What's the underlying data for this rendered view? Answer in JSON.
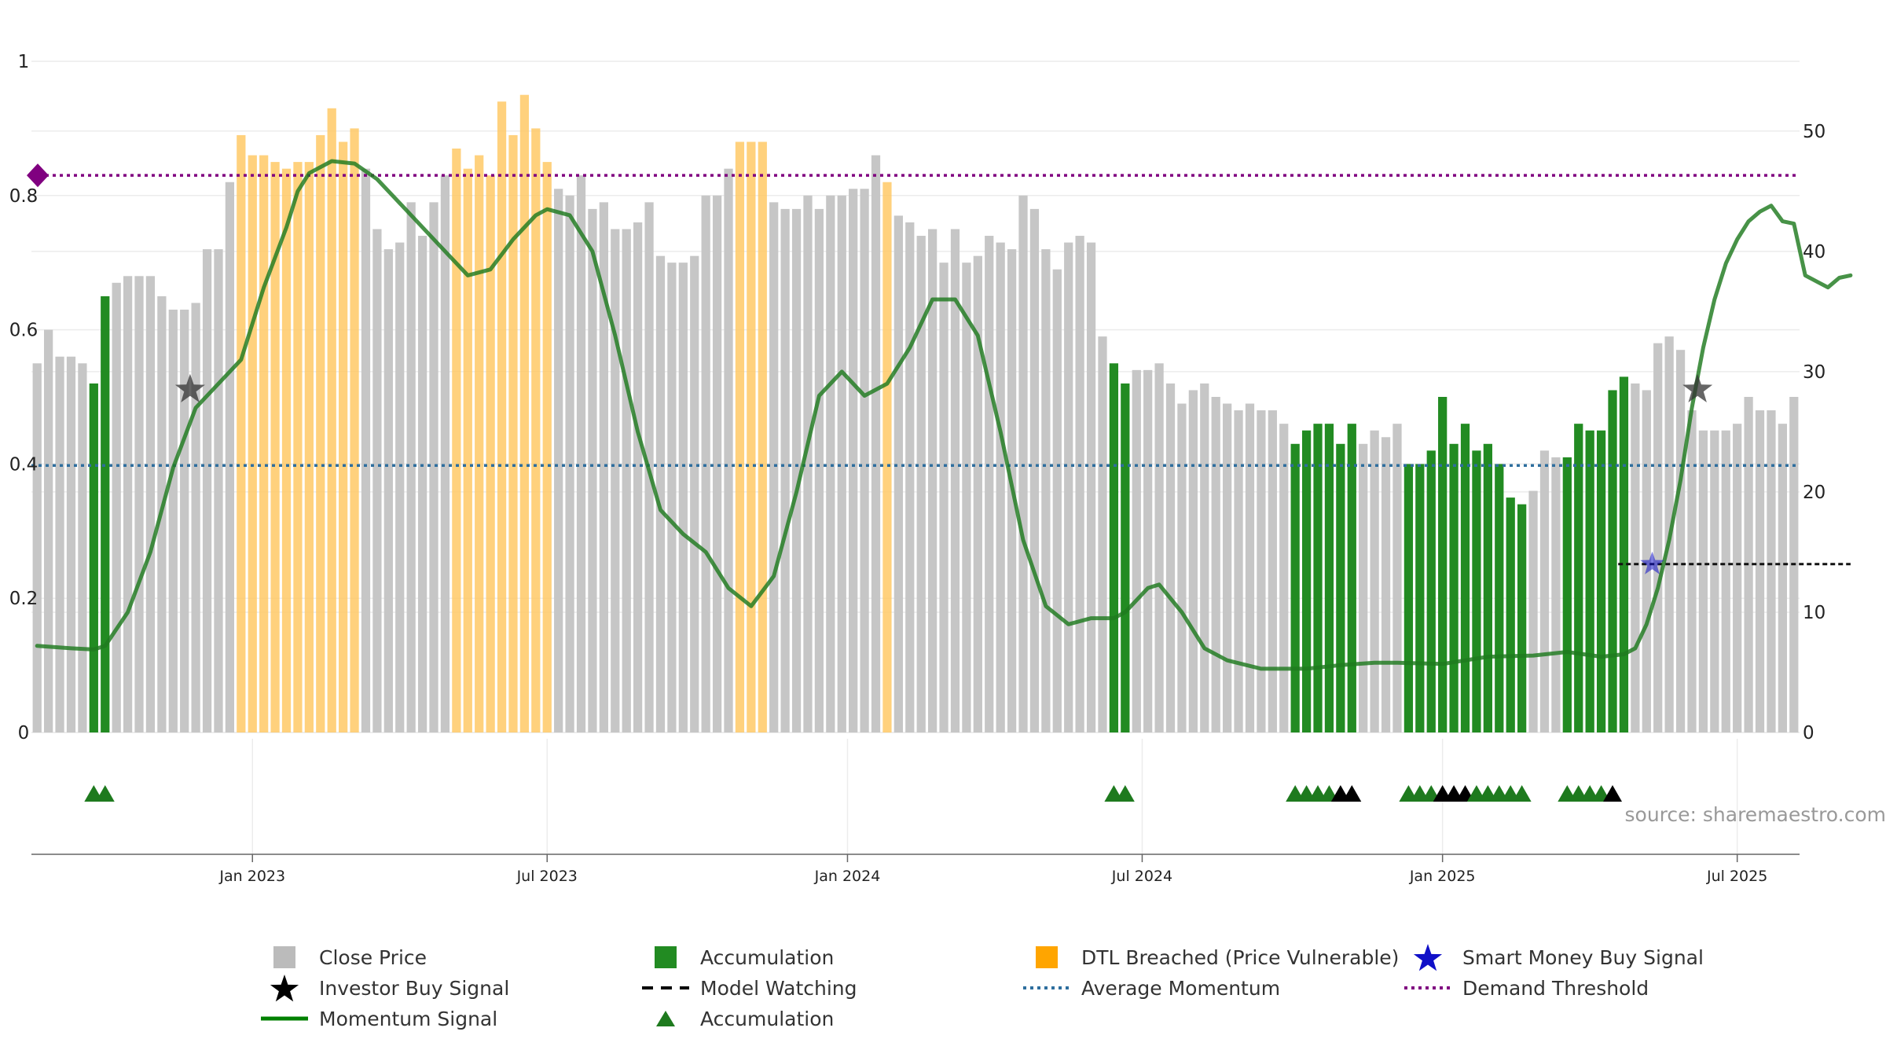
{
  "chart_data": {
    "type": "bar",
    "title": "",
    "source_text": "source: sharemaestro.com",
    "left_axis": {
      "ticks": [
        "0",
        "0.2",
        "0.4",
        "0.6",
        "0.8",
        "1"
      ],
      "values": [
        0,
        0.2,
        0.4,
        0.6,
        0.8,
        1
      ],
      "ylim": [
        0,
        1
      ]
    },
    "right_axis": {
      "ticks": [
        "0",
        "10",
        "20",
        "30",
        "40",
        "50"
      ],
      "values": [
        0,
        10,
        20,
        30,
        40,
        50
      ],
      "ylim": [
        0,
        55.8
      ]
    },
    "x_ticks": [
      {
        "label": "Jan 2023",
        "week": 19
      },
      {
        "label": "Jul 2023",
        "week": 45
      },
      {
        "label": "Jan 2024",
        "week": 71.5
      },
      {
        "label": "Jul 2024",
        "week": 97.5
      },
      {
        "label": "Jan 2025",
        "week": 124
      },
      {
        "label": "Jul 2025",
        "week": 150
      }
    ],
    "series": [
      {
        "name": "Close Price",
        "color": "#c6c6c6",
        "values": [
          0.55,
          0.6,
          0.56,
          0.56,
          0.55,
          0.52,
          0.65,
          0.67,
          0.68,
          0.68,
          0.68,
          0.65,
          0.63,
          0.63,
          0.64,
          0.72,
          0.72,
          0.82,
          0.89,
          0.86,
          0.86,
          0.85,
          0.84,
          0.85,
          0.85,
          0.89,
          0.93,
          0.88,
          0.9,
          0.84,
          0.75,
          0.72,
          0.73,
          0.79,
          0.74,
          0.79,
          0.83,
          0.87,
          0.84,
          0.86,
          0.83,
          0.94,
          0.89,
          0.95,
          0.9,
          0.85,
          0.81,
          0.8,
          0.83,
          0.78,
          0.79,
          0.75,
          0.75,
          0.76,
          0.79,
          0.71,
          0.7,
          0.7,
          0.71,
          0.8,
          0.8,
          0.84,
          0.88,
          0.88,
          0.88,
          0.79,
          0.78,
          0.78,
          0.8,
          0.78,
          0.8,
          0.8,
          0.81,
          0.81,
          0.86,
          0.82,
          0.77,
          0.76,
          0.74,
          0.75,
          0.7,
          0.75,
          0.7,
          0.71,
          0.74,
          0.73,
          0.72,
          0.8,
          0.78,
          0.72,
          0.69,
          0.73,
          0.74,
          0.73,
          0.59,
          0.55,
          0.52,
          0.54,
          0.54,
          0.55,
          0.52,
          0.49,
          0.51,
          0.52,
          0.5,
          0.49,
          0.48,
          0.49,
          0.48,
          0.48,
          0.46,
          0.43,
          0.45,
          0.46,
          0.46,
          0.43,
          0.46,
          0.43,
          0.45,
          0.44,
          0.46,
          0.4,
          0.4,
          0.42,
          0.5,
          0.43,
          0.46,
          0.42,
          0.43,
          0.4,
          0.35,
          0.34,
          0.36,
          0.42,
          0.41,
          0.41,
          0.46,
          0.45,
          0.45,
          0.51,
          0.53,
          0.52,
          0.51,
          0.58,
          0.59,
          0.57,
          0.48,
          0.45,
          0.45,
          0.45,
          0.46,
          0.5,
          0.48,
          0.48,
          0.46,
          0.5
        ]
      },
      {
        "name": "Accumulation",
        "color": "#228b22",
        "weeks": [
          5,
          6,
          95,
          96,
          111,
          112,
          113,
          114,
          115,
          116,
          121,
          122,
          123,
          124,
          125,
          126,
          127,
          128,
          129,
          130,
          131,
          135,
          136,
          137,
          138,
          139,
          140
        ]
      },
      {
        "name": "DTL Breached (Price Vulnerable)",
        "color": "#ffc966",
        "weeks": [
          18,
          19,
          20,
          21,
          22,
          23,
          24,
          25,
          26,
          27,
          28,
          37,
          38,
          39,
          40,
          41,
          42,
          43,
          44,
          45,
          62,
          63,
          64,
          75
        ]
      },
      {
        "name": "Momentum Signal",
        "color": "#1e7a1e",
        "points": [
          [
            0,
            7.2
          ],
          [
            3,
            7.0
          ],
          [
            5,
            6.9
          ],
          [
            6,
            7.2
          ],
          [
            8,
            10
          ],
          [
            10,
            15
          ],
          [
            12,
            22
          ],
          [
            14,
            27
          ],
          [
            16,
            29
          ],
          [
            18,
            31
          ],
          [
            20,
            37
          ],
          [
            22,
            42
          ],
          [
            23,
            45
          ],
          [
            24,
            46.5
          ],
          [
            26,
            47.5
          ],
          [
            28,
            47.3
          ],
          [
            30,
            46
          ],
          [
            32,
            44
          ],
          [
            34,
            42
          ],
          [
            36,
            40
          ],
          [
            38,
            38
          ],
          [
            40,
            38.5
          ],
          [
            42,
            41
          ],
          [
            44,
            43
          ],
          [
            45,
            43.5
          ],
          [
            47,
            43
          ],
          [
            49,
            40
          ],
          [
            51,
            33
          ],
          [
            53,
            25
          ],
          [
            55,
            18.5
          ],
          [
            57,
            16.5
          ],
          [
            59,
            15
          ],
          [
            61,
            12
          ],
          [
            63,
            10.5
          ],
          [
            65,
            13
          ],
          [
            67,
            20
          ],
          [
            69,
            28
          ],
          [
            71,
            30
          ],
          [
            73,
            28
          ],
          [
            75,
            29
          ],
          [
            77,
            32
          ],
          [
            79,
            36
          ],
          [
            81,
            36
          ],
          [
            83,
            33
          ],
          [
            85,
            25
          ],
          [
            87,
            16
          ],
          [
            89,
            10.5
          ],
          [
            91,
            9
          ],
          [
            93,
            9.5
          ],
          [
            95,
            9.5
          ],
          [
            96,
            10
          ],
          [
            98,
            12
          ],
          [
            99,
            12.3
          ],
          [
            101,
            10
          ],
          [
            103,
            7
          ],
          [
            105,
            6
          ],
          [
            108,
            5.3
          ],
          [
            110,
            5.3
          ],
          [
            112,
            5.3
          ],
          [
            115,
            5.6
          ],
          [
            118,
            5.8
          ],
          [
            120,
            5.8
          ],
          [
            124,
            5.7
          ],
          [
            128,
            6.3
          ],
          [
            132,
            6.4
          ],
          [
            135,
            6.7
          ],
          [
            138,
            6.3
          ],
          [
            140,
            6.5
          ],
          [
            141,
            7
          ],
          [
            142,
            9
          ],
          [
            143,
            12
          ],
          [
            144,
            16
          ],
          [
            145,
            21
          ],
          [
            146,
            27
          ],
          [
            147,
            32
          ],
          [
            148,
            36
          ],
          [
            149,
            39
          ],
          [
            150,
            41
          ],
          [
            151,
            42.5
          ],
          [
            152,
            43.3
          ],
          [
            153,
            43.8
          ],
          [
            154,
            42.5
          ],
          [
            155,
            42.3
          ],
          [
            156,
            38
          ],
          [
            157,
            37.5
          ],
          [
            158,
            37
          ],
          [
            159,
            37.8
          ],
          [
            160,
            38
          ]
        ]
      },
      {
        "name": "Average Momentum",
        "color": "#2e6e9e",
        "value": 22.2
      },
      {
        "name": "Demand Threshold",
        "color": "#800080",
        "value": 0.83
      },
      {
        "name": "Model Watching",
        "color": "#111111",
        "value": 14,
        "from_week": 139.5,
        "to_week": 160
      },
      {
        "name": "Investor Buy Signal",
        "color": "#333333",
        "points": [
          [
            13.5,
            28.5
          ],
          [
            146.5,
            28.5
          ]
        ]
      },
      {
        "name": "Smart Money Buy Signal",
        "color": "#1010c8",
        "points": [
          [
            142.5,
            14
          ]
        ]
      }
    ],
    "triangles": [
      {
        "week": 5,
        "color": "#1e7a1e"
      },
      {
        "week": 6,
        "color": "#1e7a1e"
      },
      {
        "week": 95,
        "color": "#1e7a1e"
      },
      {
        "week": 96,
        "color": "#1e7a1e"
      },
      {
        "week": 111,
        "color": "#1e7a1e"
      },
      {
        "week": 112,
        "color": "#1e7a1e"
      },
      {
        "week": 113,
        "color": "#1e7a1e"
      },
      {
        "week": 114,
        "color": "#1e7a1e"
      },
      {
        "week": 115,
        "color": "#000000"
      },
      {
        "week": 116,
        "color": "#000000"
      },
      {
        "week": 121,
        "color": "#1e7a1e"
      },
      {
        "week": 122,
        "color": "#1e7a1e"
      },
      {
        "week": 123,
        "color": "#1e7a1e"
      },
      {
        "week": 124,
        "color": "#000000"
      },
      {
        "week": 125,
        "color": "#000000"
      },
      {
        "week": 126,
        "color": "#000000"
      },
      {
        "week": 127,
        "color": "#1e7a1e"
      },
      {
        "week": 128,
        "color": "#1e7a1e"
      },
      {
        "week": 129,
        "color": "#1e7a1e"
      },
      {
        "week": 130,
        "color": "#1e7a1e"
      },
      {
        "week": 131,
        "color": "#1e7a1e"
      },
      {
        "week": 135,
        "color": "#1e7a1e"
      },
      {
        "week": 136,
        "color": "#1e7a1e"
      },
      {
        "week": 137,
        "color": "#1e7a1e"
      },
      {
        "week": 138,
        "color": "#1e7a1e"
      },
      {
        "week": 139,
        "color": "#000000"
      }
    ],
    "end_marker": {
      "color": "#800080",
      "value": 0.83
    }
  },
  "legend": [
    {
      "label": "Close Price",
      "icon": "square",
      "color": "#bbbbbb"
    },
    {
      "label": "Accumulation",
      "icon": "square",
      "color": "#228b22"
    },
    {
      "label": "DTL Breached (Price Vulnerable)",
      "icon": "square",
      "color": "#ffa500"
    },
    {
      "label": "Smart Money Buy Signal",
      "icon": "star",
      "color": "#1010c8"
    },
    {
      "label": "Investor Buy Signal",
      "icon": "star",
      "color": "#000000"
    },
    {
      "label": "Model Watching",
      "icon": "dash",
      "color": "#000000"
    },
    {
      "label": "Average Momentum",
      "icon": "dot",
      "color": "#2e6e9e"
    },
    {
      "label": "Demand Threshold",
      "icon": "dot",
      "color": "#800080"
    },
    {
      "label": "Momentum Signal",
      "icon": "line",
      "color": "#008000"
    },
    {
      "label": "Accumulation",
      "icon": "triangle",
      "color": "#1e7a1e"
    }
  ]
}
